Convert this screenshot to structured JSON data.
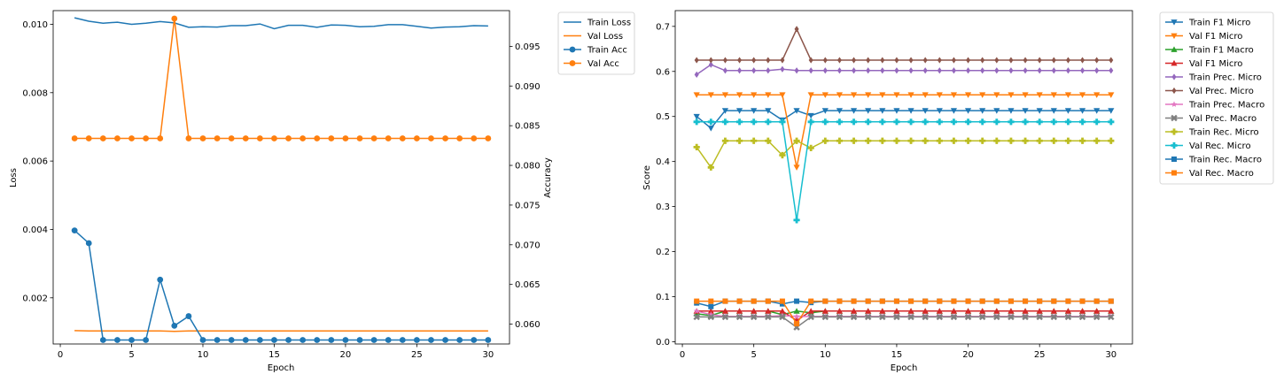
{
  "chart_data": [
    {
      "type": "line",
      "xlabel": "Epoch",
      "ylabel": "Loss",
      "y2label": "Accuracy",
      "xlim": [
        -0.5,
        31.5
      ],
      "ylim": [
        0.00065,
        0.0104
      ],
      "y2lim": [
        0.0575,
        0.0995
      ],
      "xticks": [
        "0",
        "5",
        "10",
        "15",
        "20",
        "25",
        "30"
      ],
      "yticks": [
        "0.002",
        "0.004",
        "0.006",
        "0.008",
        "0.010"
      ],
      "y2ticks": [
        "0.060",
        "0.065",
        "0.070",
        "0.075",
        "0.080",
        "0.085",
        "0.090",
        "0.095"
      ],
      "legend_position": "outside-top-right",
      "x": [
        1,
        2,
        3,
        4,
        5,
        6,
        7,
        8,
        9,
        10,
        11,
        12,
        13,
        14,
        15,
        16,
        17,
        18,
        19,
        20,
        21,
        22,
        23,
        24,
        25,
        26,
        27,
        28,
        29,
        30
      ],
      "series": [
        {
          "name": "Train Loss",
          "axis": "left",
          "color": "#1f77b4",
          "marker": "none",
          "values": [
            0.01019,
            0.01009,
            0.01003,
            0.01006,
            0.01,
            0.01003,
            0.01008,
            0.01004,
            0.00991,
            0.00993,
            0.00992,
            0.00996,
            0.00996,
            0.01001,
            0.00987,
            0.00997,
            0.00997,
            0.00991,
            0.00998,
            0.00997,
            0.00993,
            0.00994,
            0.00999,
            0.00999,
            0.00994,
            0.00989,
            0.00992,
            0.00993,
            0.00996,
            0.00995
          ]
        },
        {
          "name": "Val Loss",
          "axis": "left",
          "color": "#ff7f0e",
          "marker": "none",
          "values": [
            0.00104,
            0.00103,
            0.00103,
            0.00103,
            0.00103,
            0.00103,
            0.00103,
            0.00102,
            0.00103,
            0.00103,
            0.00103,
            0.00103,
            0.00103,
            0.00103,
            0.00103,
            0.00103,
            0.00103,
            0.00103,
            0.00103,
            0.00103,
            0.00103,
            0.00103,
            0.00103,
            0.00103,
            0.00103,
            0.00103,
            0.00103,
            0.00103,
            0.00103,
            0.00103
          ]
        },
        {
          "name": "Train Acc",
          "axis": "right",
          "color": "#1f77b4",
          "marker": "circle",
          "values": [
            0.0718,
            0.0702,
            0.058,
            0.058,
            0.058,
            0.058,
            0.0656,
            0.0598,
            0.061,
            0.058,
            0.058,
            0.058,
            0.058,
            0.058,
            0.058,
            0.058,
            0.058,
            0.058,
            0.058,
            0.058,
            0.058,
            0.058,
            0.058,
            0.058,
            0.058,
            0.058,
            0.058,
            0.058,
            0.058,
            0.058
          ]
        },
        {
          "name": "Val Acc",
          "axis": "right",
          "color": "#ff7f0e",
          "marker": "circle",
          "values": [
            0.0834,
            0.0834,
            0.0834,
            0.0834,
            0.0834,
            0.0834,
            0.0834,
            0.0985,
            0.0834,
            0.0834,
            0.0834,
            0.0834,
            0.0834,
            0.0834,
            0.0834,
            0.0834,
            0.0834,
            0.0834,
            0.0834,
            0.0834,
            0.0834,
            0.0834,
            0.0834,
            0.0834,
            0.0834,
            0.0834,
            0.0834,
            0.0834,
            0.0834,
            0.0834
          ]
        }
      ]
    },
    {
      "type": "line",
      "xlabel": "Epoch",
      "ylabel": "Score",
      "xlim": [
        -0.5,
        31.5
      ],
      "ylim": [
        -0.005,
        0.735
      ],
      "xticks": [
        "0",
        "5",
        "10",
        "15",
        "20",
        "25",
        "30"
      ],
      "yticks": [
        "0.0",
        "0.1",
        "0.2",
        "0.3",
        "0.4",
        "0.5",
        "0.6",
        "0.7"
      ],
      "legend_position": "outside-top-right",
      "x": [
        1,
        2,
        3,
        4,
        5,
        6,
        7,
        8,
        9,
        10,
        11,
        12,
        13,
        14,
        15,
        16,
        17,
        18,
        19,
        20,
        21,
        22,
        23,
        24,
        25,
        26,
        27,
        28,
        29,
        30
      ],
      "series": [
        {
          "name": "Train F1 Micro",
          "color": "#1f77b4",
          "marker": "triangle-down",
          "values": [
            0.5,
            0.474,
            0.513,
            0.513,
            0.513,
            0.513,
            0.492,
            0.513,
            0.502,
            0.513,
            0.513,
            0.513,
            0.513,
            0.513,
            0.513,
            0.513,
            0.513,
            0.513,
            0.513,
            0.513,
            0.513,
            0.513,
            0.513,
            0.513,
            0.513,
            0.513,
            0.513,
            0.513,
            0.513,
            0.513
          ]
        },
        {
          "name": "Val F1 Micro",
          "color": "#ff7f0e",
          "marker": "triangle-down",
          "values": [
            0.548,
            0.548,
            0.548,
            0.548,
            0.548,
            0.548,
            0.548,
            0.387,
            0.548,
            0.548,
            0.548,
            0.548,
            0.548,
            0.548,
            0.548,
            0.548,
            0.548,
            0.548,
            0.548,
            0.548,
            0.548,
            0.548,
            0.548,
            0.548,
            0.548,
            0.548,
            0.548,
            0.548,
            0.548,
            0.548
          ]
        },
        {
          "name": "Train F1 Macro",
          "color": "#2ca02c",
          "marker": "triangle-up",
          "values": [
            0.062,
            0.058,
            0.068,
            0.068,
            0.068,
            0.068,
            0.06,
            0.068,
            0.064,
            0.068,
            0.068,
            0.068,
            0.068,
            0.068,
            0.068,
            0.068,
            0.068,
            0.068,
            0.068,
            0.068,
            0.068,
            0.068,
            0.068,
            0.068,
            0.068,
            0.068,
            0.068,
            0.068,
            0.068,
            0.068
          ]
        },
        {
          "name": "Val F1 Micro",
          "color": "#d62728",
          "marker": "triangle-up",
          "values": [
            0.068,
            0.068,
            0.068,
            0.068,
            0.068,
            0.068,
            0.068,
            0.047,
            0.068,
            0.068,
            0.068,
            0.068,
            0.068,
            0.068,
            0.068,
            0.068,
            0.068,
            0.068,
            0.068,
            0.068,
            0.068,
            0.068,
            0.068,
            0.068,
            0.068,
            0.068,
            0.068,
            0.068,
            0.068,
            0.068
          ]
        },
        {
          "name": "Train Prec. Micro",
          "color": "#9467bd",
          "marker": "diamond",
          "values": [
            0.593,
            0.615,
            0.602,
            0.602,
            0.602,
            0.602,
            0.605,
            0.602,
            0.602,
            0.602,
            0.602,
            0.602,
            0.602,
            0.602,
            0.602,
            0.602,
            0.602,
            0.602,
            0.602,
            0.602,
            0.602,
            0.602,
            0.602,
            0.602,
            0.602,
            0.602,
            0.602,
            0.602,
            0.602,
            0.602
          ]
        },
        {
          "name": "Val Prec. Micro",
          "color": "#8c564b",
          "marker": "diamond",
          "values": [
            0.625,
            0.625,
            0.625,
            0.625,
            0.625,
            0.625,
            0.625,
            0.694,
            0.625,
            0.625,
            0.625,
            0.625,
            0.625,
            0.625,
            0.625,
            0.625,
            0.625,
            0.625,
            0.625,
            0.625,
            0.625,
            0.625,
            0.625,
            0.625,
            0.625,
            0.625,
            0.625,
            0.625,
            0.625,
            0.625
          ]
        },
        {
          "name": "Train Prec. Macro",
          "color": "#e377c2",
          "marker": "star",
          "values": [
            0.068,
            0.06,
            0.056,
            0.056,
            0.056,
            0.056,
            0.058,
            0.056,
            0.056,
            0.056,
            0.056,
            0.056,
            0.056,
            0.056,
            0.056,
            0.056,
            0.056,
            0.056,
            0.056,
            0.056,
            0.056,
            0.056,
            0.056,
            0.056,
            0.056,
            0.056,
            0.056,
            0.056,
            0.056,
            0.056
          ]
        },
        {
          "name": "Val Prec. Macro",
          "color": "#7f7f7f",
          "marker": "x",
          "values": [
            0.055,
            0.055,
            0.055,
            0.055,
            0.055,
            0.055,
            0.055,
            0.032,
            0.055,
            0.055,
            0.055,
            0.055,
            0.055,
            0.055,
            0.055,
            0.055,
            0.055,
            0.055,
            0.055,
            0.055,
            0.055,
            0.055,
            0.055,
            0.055,
            0.055,
            0.055,
            0.055,
            0.055,
            0.055,
            0.055
          ]
        },
        {
          "name": "Train Rec. Micro",
          "color": "#bcbd22",
          "marker": "plus",
          "values": [
            0.432,
            0.387,
            0.446,
            0.446,
            0.446,
            0.446,
            0.414,
            0.446,
            0.43,
            0.446,
            0.446,
            0.446,
            0.446,
            0.446,
            0.446,
            0.446,
            0.446,
            0.446,
            0.446,
            0.446,
            0.446,
            0.446,
            0.446,
            0.446,
            0.446,
            0.446,
            0.446,
            0.446,
            0.446,
            0.446
          ]
        },
        {
          "name": "Val Rec. Micro",
          "color": "#17becf",
          "marker": "plus",
          "values": [
            0.488,
            0.488,
            0.488,
            0.488,
            0.488,
            0.488,
            0.488,
            0.27,
            0.488,
            0.488,
            0.488,
            0.488,
            0.488,
            0.488,
            0.488,
            0.488,
            0.488,
            0.488,
            0.488,
            0.488,
            0.488,
            0.488,
            0.488,
            0.488,
            0.488,
            0.488,
            0.488,
            0.488,
            0.488,
            0.488
          ]
        },
        {
          "name": "Train Rec. Macro",
          "color": "#1f77b4",
          "marker": "square",
          "values": [
            0.086,
            0.078,
            0.09,
            0.09,
            0.09,
            0.09,
            0.084,
            0.09,
            0.087,
            0.09,
            0.09,
            0.09,
            0.09,
            0.09,
            0.09,
            0.09,
            0.09,
            0.09,
            0.09,
            0.09,
            0.09,
            0.09,
            0.09,
            0.09,
            0.09,
            0.09,
            0.09,
            0.09,
            0.09,
            0.09
          ]
        },
        {
          "name": "Val Rec. Macro",
          "color": "#ff7f0e",
          "marker": "square",
          "values": [
            0.09,
            0.09,
            0.09,
            0.09,
            0.09,
            0.09,
            0.09,
            0.04,
            0.09,
            0.09,
            0.09,
            0.09,
            0.09,
            0.09,
            0.09,
            0.09,
            0.09,
            0.09,
            0.09,
            0.09,
            0.09,
            0.09,
            0.09,
            0.09,
            0.09,
            0.09,
            0.09,
            0.09,
            0.09,
            0.09
          ]
        }
      ]
    }
  ]
}
